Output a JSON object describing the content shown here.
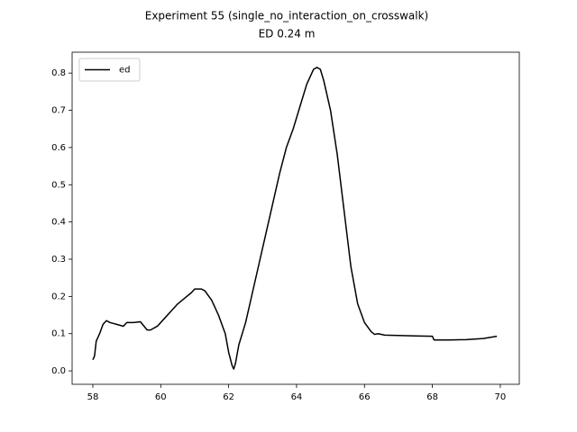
{
  "chart_data": {
    "type": "line",
    "title": "Experiment 55 (single_no_interaction_on_crosswalk)",
    "subtitle": "ED 0.24 m",
    "x": [
      58.0,
      58.05,
      58.1,
      58.2,
      58.3,
      58.4,
      58.5,
      58.7,
      58.9,
      59.0,
      59.2,
      59.4,
      59.6,
      59.7,
      59.9,
      60.1,
      60.3,
      60.5,
      60.7,
      60.9,
      61.0,
      61.2,
      61.3,
      61.5,
      61.7,
      61.9,
      62.0,
      62.1,
      62.15,
      62.2,
      62.3,
      62.5,
      62.7,
      62.9,
      63.1,
      63.3,
      63.5,
      63.7,
      63.9,
      64.1,
      64.3,
      64.5,
      64.6,
      64.7,
      64.8,
      65.0,
      65.2,
      65.4,
      65.6,
      65.8,
      66.0,
      66.2,
      66.3,
      66.4,
      66.6,
      67.0,
      67.5,
      68.0,
      68.05,
      68.5,
      69.0,
      69.5,
      69.9
    ],
    "series": [
      {
        "name": "ed",
        "color": "#000000",
        "values": [
          0.03,
          0.04,
          0.08,
          0.1,
          0.125,
          0.135,
          0.13,
          0.125,
          0.12,
          0.13,
          0.13,
          0.132,
          0.11,
          0.11,
          0.12,
          0.14,
          0.16,
          0.18,
          0.195,
          0.21,
          0.22,
          0.22,
          0.215,
          0.19,
          0.15,
          0.1,
          0.05,
          0.015,
          0.005,
          0.02,
          0.07,
          0.13,
          0.21,
          0.29,
          0.37,
          0.45,
          0.53,
          0.6,
          0.65,
          0.71,
          0.77,
          0.81,
          0.815,
          0.81,
          0.78,
          0.7,
          0.58,
          0.43,
          0.28,
          0.18,
          0.13,
          0.105,
          0.098,
          0.1,
          0.096,
          0.095,
          0.094,
          0.093,
          0.083,
          0.083,
          0.084,
          0.087,
          0.093
        ]
      }
    ],
    "xlim": [
      57.39,
      70.56
    ],
    "ylim": [
      -0.036,
      0.856
    ],
    "xticks": [
      58,
      60,
      62,
      64,
      66,
      68,
      70
    ],
    "yticks": [
      {
        "value": 0,
        "label": "0.0"
      },
      0.1,
      0.2,
      0.3,
      0.4,
      0.5,
      0.6,
      0.7,
      0.8
    ],
    "legend": "upper left",
    "grid": false
  }
}
